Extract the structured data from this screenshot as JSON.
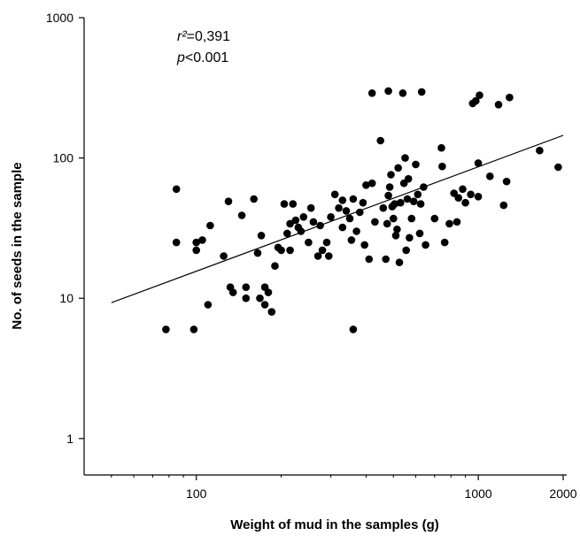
{
  "chart_data": {
    "type": "scatter",
    "xlabel": "Weight of mud in the samples (g)",
    "ylabel": "No. of seeds in the sample",
    "x_scale": "log",
    "y_scale": "log",
    "xlim": [
      40,
      2000
    ],
    "ylim": [
      0.55,
      1000
    ],
    "x_ticks": [
      100,
      1000,
      2000
    ],
    "x_tick_labels": [
      "100",
      "1000",
      "2000"
    ],
    "y_ticks": [
      1,
      10,
      100,
      1000
    ],
    "y_tick_labels": [
      "1",
      "10",
      "100",
      "1000"
    ],
    "annotations": {
      "r2_symbol": "r²",
      "r2_value": "=0,391",
      "p_symbol": "p",
      "p_value": "<0.001"
    },
    "regression_line": {
      "x": [
        50,
        2000
      ],
      "y": [
        9.3,
        145
      ]
    },
    "grid": false,
    "points": [
      [
        78,
        6
      ],
      [
        85,
        60
      ],
      [
        85,
        25
      ],
      [
        98,
        6
      ],
      [
        100,
        22
      ],
      [
        100,
        25
      ],
      [
        105,
        26
      ],
      [
        110,
        9
      ],
      [
        112,
        33
      ],
      [
        125,
        20
      ],
      [
        130,
        49
      ],
      [
        132,
        12
      ],
      [
        135,
        11
      ],
      [
        145,
        39
      ],
      [
        150,
        10
      ],
      [
        150,
        12
      ],
      [
        160,
        51
      ],
      [
        165,
        21
      ],
      [
        168,
        10
      ],
      [
        170,
        28
      ],
      [
        175,
        9
      ],
      [
        175,
        12
      ],
      [
        180,
        11
      ],
      [
        185,
        8
      ],
      [
        190,
        17
      ],
      [
        195,
        23
      ],
      [
        200,
        22
      ],
      [
        205,
        47
      ],
      [
        210,
        29
      ],
      [
        215,
        22
      ],
      [
        215,
        34
      ],
      [
        220,
        47
      ],
      [
        225,
        36
      ],
      [
        230,
        32
      ],
      [
        235,
        30
      ],
      [
        240,
        38
      ],
      [
        250,
        25
      ],
      [
        255,
        44
      ],
      [
        260,
        35
      ],
      [
        270,
        20
      ],
      [
        275,
        33
      ],
      [
        280,
        22
      ],
      [
        290,
        25
      ],
      [
        295,
        20
      ],
      [
        300,
        38
      ],
      [
        310,
        55
      ],
      [
        320,
        44
      ],
      [
        330,
        32
      ],
      [
        330,
        50
      ],
      [
        340,
        42
      ],
      [
        350,
        37
      ],
      [
        355,
        26
      ],
      [
        360,
        51
      ],
      [
        360,
        6
      ],
      [
        370,
        30
      ],
      [
        380,
        41
      ],
      [
        390,
        48
      ],
      [
        395,
        24
      ],
      [
        400,
        64
      ],
      [
        410,
        19
      ],
      [
        420,
        290
      ],
      [
        420,
        66
      ],
      [
        430,
        35
      ],
      [
        450,
        133
      ],
      [
        460,
        44
      ],
      [
        470,
        19
      ],
      [
        475,
        34
      ],
      [
        480,
        300
      ],
      [
        480,
        54
      ],
      [
        485,
        62
      ],
      [
        490,
        76
      ],
      [
        495,
        45
      ],
      [
        500,
        37
      ],
      [
        505,
        47
      ],
      [
        510,
        28
      ],
      [
        515,
        31
      ],
      [
        520,
        85
      ],
      [
        525,
        18
      ],
      [
        530,
        48
      ],
      [
        540,
        290
      ],
      [
        545,
        66
      ],
      [
        550,
        100
      ],
      [
        555,
        22
      ],
      [
        560,
        51
      ],
      [
        565,
        71
      ],
      [
        570,
        27
      ],
      [
        580,
        37
      ],
      [
        590,
        49
      ],
      [
        600,
        90
      ],
      [
        610,
        55
      ],
      [
        620,
        29
      ],
      [
        625,
        47
      ],
      [
        630,
        296
      ],
      [
        640,
        62
      ],
      [
        650,
        24
      ],
      [
        700,
        37
      ],
      [
        740,
        118
      ],
      [
        745,
        87
      ],
      [
        760,
        25
      ],
      [
        790,
        34
      ],
      [
        820,
        56
      ],
      [
        840,
        35
      ],
      [
        850,
        52
      ],
      [
        880,
        60
      ],
      [
        900,
        48
      ],
      [
        940,
        55
      ],
      [
        955,
        245
      ],
      [
        980,
        255
      ],
      [
        1000,
        53
      ],
      [
        1000,
        92
      ],
      [
        1010,
        280
      ],
      [
        1100,
        74
      ],
      [
        1180,
        240
      ],
      [
        1230,
        46
      ],
      [
        1260,
        68
      ],
      [
        1290,
        270
      ],
      [
        1650,
        113
      ],
      [
        1920,
        86
      ]
    ]
  }
}
